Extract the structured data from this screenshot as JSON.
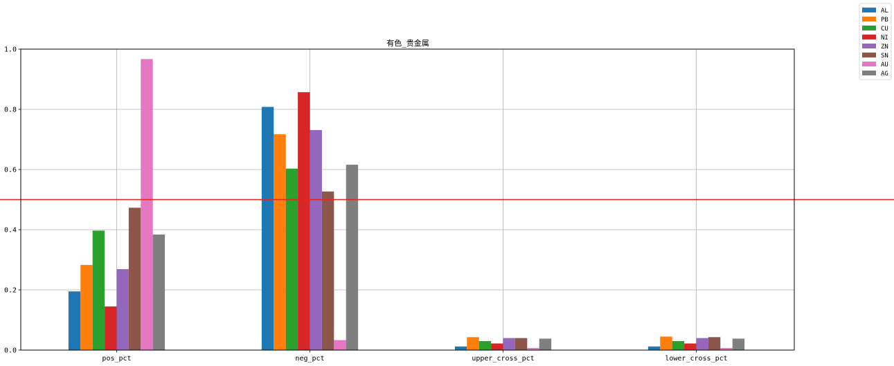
{
  "chart_data": {
    "type": "bar",
    "title": "有色_贵金属",
    "xlabel": "",
    "ylabel": "",
    "categories": [
      "pos_pct",
      "neg_pct",
      "upper_cross_pct",
      "lower_cross_pct"
    ],
    "ylim": [
      0,
      1.0
    ],
    "yticks": [
      "0.0",
      "0.2",
      "0.4",
      "0.6",
      "0.8",
      "1.0"
    ],
    "grid": true,
    "legend_position": "outside-top-right",
    "reference_line": {
      "y": 0.5,
      "color": "#e8221c"
    },
    "series": [
      {
        "name": "AL",
        "color": "#1f77b4",
        "values": [
          0.195,
          0.808,
          0.012,
          0.012
        ]
      },
      {
        "name": "PB",
        "color": "#ff7f0e",
        "values": [
          0.283,
          0.717,
          0.043,
          0.045
        ]
      },
      {
        "name": "CU",
        "color": "#2ca02c",
        "values": [
          0.397,
          0.603,
          0.03,
          0.03
        ]
      },
      {
        "name": "NI",
        "color": "#d62728",
        "values": [
          0.145,
          0.857,
          0.022,
          0.022
        ]
      },
      {
        "name": "ZN",
        "color": "#9467bd",
        "values": [
          0.269,
          0.731,
          0.04,
          0.04
        ]
      },
      {
        "name": "SN",
        "color": "#8c564b",
        "values": [
          0.473,
          0.527,
          0.04,
          0.043
        ]
      },
      {
        "name": "AU",
        "color": "#e377c2",
        "values": [
          0.967,
          0.033,
          0.007,
          0.007
        ]
      },
      {
        "name": "AG",
        "color": "#7f7f7f",
        "values": [
          0.384,
          0.616,
          0.038,
          0.038
        ]
      }
    ]
  }
}
